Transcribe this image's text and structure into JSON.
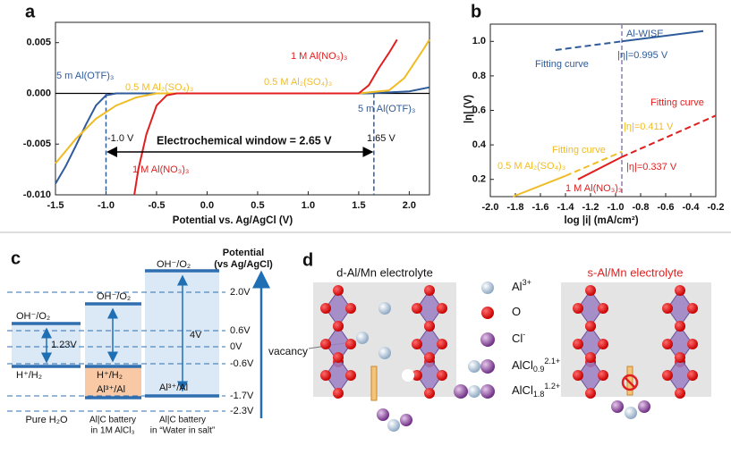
{
  "chart_data": [
    {
      "type": "line",
      "panel_label": "a",
      "x_label": "Potential vs. Ag/AgCl (V)",
      "xlim": [
        -1.5,
        2.2
      ],
      "xticks": [
        -1.5,
        {
          "value": -1.0,
          "label": "-1.0"
        },
        -0.5,
        {
          "value": 0,
          "label": "0.0"
        },
        0.5,
        {
          "value": 1,
          "label": "1.0"
        },
        1.5,
        {
          "value": 2,
          "label": "2.0"
        }
      ],
      "ylim": [
        -0.01,
        0.007
      ],
      "yticks": [
        {
          "value": -0.01,
          "label": "-0.010"
        },
        -0.005,
        {
          "value": 0,
          "label": "0.000"
        },
        0.005
      ],
      "vlines": [
        -1.0,
        1.65
      ],
      "vline_color": "#2f5b9a",
      "series": [
        {
          "name": "5 m Al(OTF)₃",
          "color": "#2f5b9a",
          "x": [
            -1.5,
            -1.4,
            -1.3,
            -1.2,
            -1.1,
            -1.0,
            -0.9,
            1.6,
            2.0,
            2.2
          ],
          "values": [
            -0.0089,
            -0.0072,
            -0.0052,
            -0.0031,
            -0.0012,
            -0.0002,
            0,
            0,
            0.0002,
            0.0006
          ]
        },
        {
          "name": "0.5 M Al₂(SO₄)₃",
          "color": "#f0bc26",
          "x": [
            -1.5,
            -1.3,
            -1.1,
            -0.9,
            -0.7,
            -0.5,
            1.5,
            1.8,
            1.95,
            2.05,
            2.15,
            2.2
          ],
          "values": [
            -0.0069,
            -0.0045,
            -0.0025,
            -0.0012,
            -0.0004,
            0,
            0,
            0.0003,
            0.0015,
            0.003,
            0.0045,
            0.0053
          ]
        },
        {
          "name": "1 M Al(NO₃)₃",
          "color": "#e02020",
          "x": [
            -0.72,
            -0.68,
            -0.6,
            -0.5,
            -0.4,
            -0.3,
            1.5,
            1.6,
            1.7,
            1.8,
            1.88
          ],
          "values": [
            -0.01,
            -0.0075,
            -0.004,
            -0.0012,
            -0.0002,
            0,
            0,
            0.0008,
            0.0025,
            0.004,
            0.0053
          ]
        }
      ],
      "annotations": [
        "5 m Al(OTF)₃",
        "0.5 M Al₂(SO₄)₃",
        "1 M Al(NO₃)₃",
        "-1.0 V",
        "1.65 V",
        "Electrochemical window = 2.65 V"
      ]
    },
    {
      "type": "line",
      "panel_label": "b",
      "x_label": "log |i| (mA/cm²)",
      "y_label": "|η| (V)",
      "xlim": [
        -2.0,
        -0.2
      ],
      "xticks": [
        {
          "value": -2.0,
          "label": "-2.0"
        },
        -1.8,
        -1.6,
        -1.4,
        -1.2,
        {
          "value": -1.0,
          "label": "-1.0"
        },
        -0.8,
        -0.6,
        -0.4,
        -0.2
      ],
      "ylim": [
        0.1,
        1.1
      ],
      "yticks": [
        0.2,
        0.4,
        0.6,
        0.8,
        {
          "value": 1.0,
          "label": "1.0"
        }
      ],
      "vlines": [
        -0.95
      ],
      "vline_color": "#8e7fb0",
      "series": [
        {
          "name": "Al-WISE",
          "color": "#2f5b9a",
          "x": [
            -0.95,
            -0.3
          ],
          "values": [
            1.0,
            1.06
          ]
        },
        {
          "name": "Fitting curve",
          "color": "#2f5b9a",
          "dash": true,
          "x": [
            -1.48,
            -0.95
          ],
          "values": [
            0.95,
            1.0
          ]
        },
        {
          "name": "0.5 M Al₂(SO₄)₃",
          "color": "#f0bc26",
          "x": [
            -1.82,
            -1.4
          ],
          "values": [
            0.1,
            0.22
          ]
        },
        {
          "name": "Fitting curve",
          "color": "#f0bc26",
          "dash": true,
          "x": [
            -1.4,
            -0.95
          ],
          "values": [
            0.22,
            0.36
          ]
        },
        {
          "name": "1 M Al(NO₃)₃",
          "color": "#e02020",
          "x": [
            -1.3,
            -0.95
          ],
          "values": [
            0.2,
            0.33
          ]
        },
        {
          "name": "Fitting curve",
          "color": "#e02020",
          "dash": true,
          "x": [
            -0.95,
            -0.2
          ],
          "values": [
            0.33,
            0.57
          ]
        }
      ],
      "annotations": [
        "|η|=0.995 V",
        "|η|=0.411 V",
        "|η|=0.337 V"
      ]
    }
  ],
  "panel_c": {
    "label": "c",
    "axis_title": [
      "Potential",
      "(vs Ag/AgCl)"
    ],
    "levels": [
      "2.0V",
      "0.6V",
      "0V",
      "-0.6V",
      "-1.7V",
      "-2.3V"
    ],
    "pure_water": {
      "top": "OH⁻/O₂",
      "bottom": "H⁺/H₂",
      "gap": "1.23V",
      "caption": "Pure H₂O"
    },
    "alcl3": {
      "top": "OH⁻/O₂",
      "middle": "H⁺/H₂",
      "bottom": "Al³⁺/Al",
      "caption": [
        "Al|C battery",
        "in 1M AlCl₃"
      ]
    },
    "wis": {
      "top": "OH⁻/O₂",
      "bottom": "Al³⁺/Al",
      "gap": "4V",
      "caption": [
        "Al|C battery",
        "in “Water in salt”"
      ]
    }
  },
  "panel_d": {
    "label": "d",
    "left_title": "d-Al/Mn electrolyte",
    "right_title": "s-Al/Mn electrolyte",
    "vacancy": "vacancy",
    "legend": [
      {
        "formula": "Al",
        "sup": "3+"
      },
      {
        "formula": "O"
      },
      {
        "formula": "Cl",
        "sup": "-"
      },
      {
        "formula": "AlCl",
        "sub": "0.9",
        "sup": "2.1+"
      },
      {
        "formula": "AlCl",
        "sub": "1.8",
        "sup": "1.2+"
      }
    ]
  }
}
